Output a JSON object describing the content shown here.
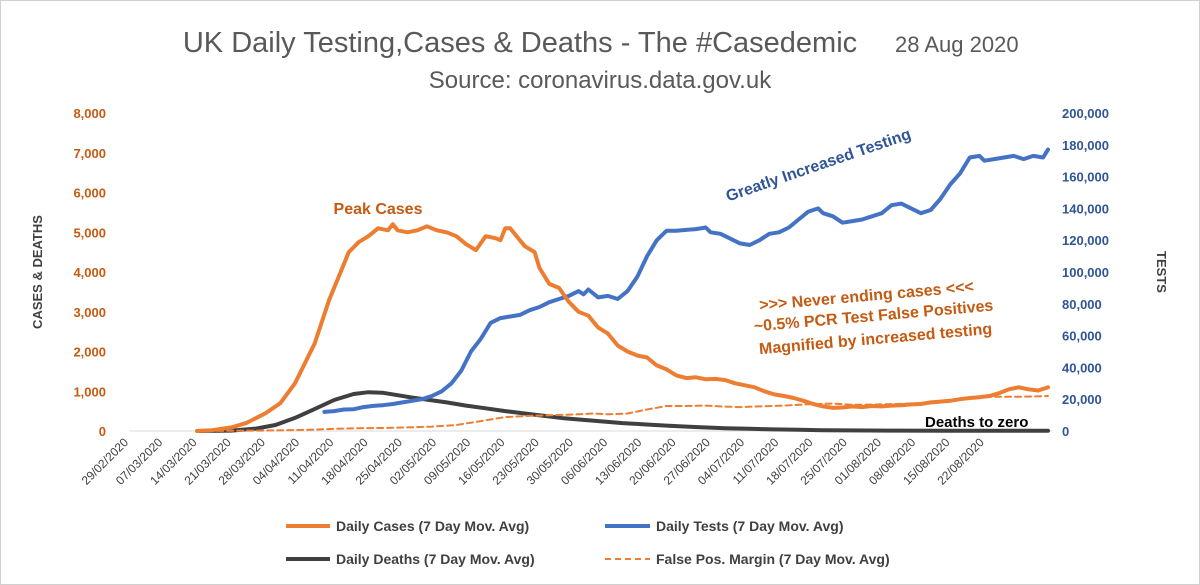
{
  "chart_data": {
    "type": "line",
    "title": "UK Daily Testing,Cases & Deaths - The #Casedemic",
    "date": "28 Aug 2020",
    "subtitle": "Source: coronavirus.data.gov.uk",
    "ylabel_left": "CASES & DEATHS",
    "ylabel_right": "TESTS",
    "ylim_left": [
      0,
      8000
    ],
    "ylim_right": [
      0,
      200000
    ],
    "left_ticks": [
      "0",
      "1,000",
      "2,000",
      "3,000",
      "4,000",
      "5,000",
      "6,000",
      "7,000",
      "8,000"
    ],
    "right_ticks": [
      "0",
      "20,000",
      "40,000",
      "60,000",
      "80,000",
      "100,000",
      "120,000",
      "140,000",
      "160,000",
      "180,000",
      "200,000"
    ],
    "x_ticks": [
      "29/02/2020",
      "07/03/2020",
      "14/03/2020",
      "21/03/2020",
      "28/03/2020",
      "04/04/2020",
      "11/04/2020",
      "18/04/2020",
      "25/04/2020",
      "02/05/2020",
      "09/05/2020",
      "16/05/2020",
      "23/05/2020",
      "30/05/2020",
      "06/06/2020",
      "13/06/2020",
      "20/06/2020",
      "27/06/2020",
      "04/07/2020",
      "11/07/2020",
      "18/07/2020",
      "25/07/2020",
      "01/08/2020",
      "08/08/2020",
      "15/08/2020",
      "22/08/2020"
    ],
    "x_range_days": [
      0,
      181
    ],
    "series": [
      {
        "name": "Daily Cases (7 Day Mov. Avg)",
        "axis": "left",
        "color": "#ED7D31",
        "style": "solid",
        "points": [
          [
            7,
            0
          ],
          [
            10,
            20
          ],
          [
            14,
            90
          ],
          [
            17,
            200
          ],
          [
            21,
            450
          ],
          [
            24,
            700
          ],
          [
            27,
            1200
          ],
          [
            31,
            2200
          ],
          [
            34,
            3300
          ],
          [
            36,
            3900
          ],
          [
            38,
            4500
          ],
          [
            40,
            4750
          ],
          [
            42,
            4900
          ],
          [
            44,
            5100
          ],
          [
            46,
            5050
          ],
          [
            47,
            5200
          ],
          [
            48,
            5050
          ],
          [
            50,
            5000
          ],
          [
            52,
            5050
          ],
          [
            54,
            5150
          ],
          [
            56,
            5050
          ],
          [
            58,
            5000
          ],
          [
            60,
            4900
          ],
          [
            62,
            4700
          ],
          [
            64,
            4550
          ],
          [
            66,
            4900
          ],
          [
            68,
            4850
          ],
          [
            69,
            4800
          ],
          [
            70,
            5100
          ],
          [
            71,
            5100
          ],
          [
            72,
            4950
          ],
          [
            74,
            4650
          ],
          [
            76,
            4500
          ],
          [
            77,
            4100
          ],
          [
            79,
            3700
          ],
          [
            81,
            3600
          ],
          [
            83,
            3250
          ],
          [
            85,
            3000
          ],
          [
            87,
            2900
          ],
          [
            89,
            2600
          ],
          [
            91,
            2450
          ],
          [
            93,
            2150
          ],
          [
            95,
            2000
          ],
          [
            97,
            1900
          ],
          [
            99,
            1850
          ],
          [
            101,
            1650
          ],
          [
            103,
            1550
          ],
          [
            105,
            1400
          ],
          [
            107,
            1330
          ],
          [
            109,
            1350
          ],
          [
            111,
            1300
          ],
          [
            113,
            1310
          ],
          [
            115,
            1280
          ],
          [
            117,
            1200
          ],
          [
            119,
            1150
          ],
          [
            121,
            1100
          ],
          [
            123,
            1000
          ],
          [
            125,
            920
          ],
          [
            127,
            880
          ],
          [
            129,
            830
          ],
          [
            131,
            760
          ],
          [
            133,
            680
          ],
          [
            135,
            620
          ],
          [
            137,
            580
          ],
          [
            139,
            590
          ],
          [
            141,
            620
          ],
          [
            143,
            600
          ],
          [
            145,
            630
          ],
          [
            147,
            620
          ],
          [
            149,
            640
          ],
          [
            151,
            650
          ],
          [
            153,
            670
          ],
          [
            155,
            680
          ],
          [
            157,
            720
          ],
          [
            159,
            740
          ],
          [
            161,
            760
          ],
          [
            163,
            800
          ],
          [
            165,
            830
          ],
          [
            167,
            850
          ],
          [
            169,
            880
          ],
          [
            171,
            950
          ],
          [
            173,
            1050
          ],
          [
            175,
            1100
          ],
          [
            177,
            1050
          ],
          [
            179,
            1020
          ],
          [
            181,
            1100
          ]
        ]
      },
      {
        "name": "Daily Tests (7 Day Mov. Avg)",
        "axis": "right",
        "color": "#4472C4",
        "style": "solid",
        "points": [
          [
            33,
            12000
          ],
          [
            35,
            12500
          ],
          [
            37,
            13500
          ],
          [
            39,
            13700
          ],
          [
            41,
            15000
          ],
          [
            43,
            15800
          ],
          [
            45,
            16200
          ],
          [
            47,
            17000
          ],
          [
            49,
            18000
          ],
          [
            51,
            19000
          ],
          [
            53,
            20000
          ],
          [
            55,
            22000
          ],
          [
            57,
            25000
          ],
          [
            59,
            30000
          ],
          [
            61,
            38000
          ],
          [
            63,
            50000
          ],
          [
            65,
            58000
          ],
          [
            67,
            68000
          ],
          [
            69,
            71000
          ],
          [
            71,
            72000
          ],
          [
            73,
            73000
          ],
          [
            75,
            76000
          ],
          [
            77,
            78000
          ],
          [
            79,
            81000
          ],
          [
            81,
            83000
          ],
          [
            83,
            85000
          ],
          [
            85,
            88000
          ],
          [
            86,
            86000
          ],
          [
            87,
            89000
          ],
          [
            89,
            84000
          ],
          [
            91,
            85000
          ],
          [
            93,
            83000
          ],
          [
            95,
            88000
          ],
          [
            97,
            97000
          ],
          [
            99,
            110000
          ],
          [
            101,
            120000
          ],
          [
            103,
            126000
          ],
          [
            105,
            126000
          ],
          [
            107,
            126500
          ],
          [
            109,
            127000
          ],
          [
            111,
            128000
          ],
          [
            112,
            125000
          ],
          [
            114,
            124000
          ],
          [
            116,
            121000
          ],
          [
            118,
            118000
          ],
          [
            120,
            117000
          ],
          [
            122,
            120000
          ],
          [
            124,
            124000
          ],
          [
            126,
            125000
          ],
          [
            128,
            128000
          ],
          [
            130,
            133000
          ],
          [
            132,
            138000
          ],
          [
            134,
            140000
          ],
          [
            135,
            137000
          ],
          [
            137,
            135000
          ],
          [
            139,
            131000
          ],
          [
            141,
            132000
          ],
          [
            143,
            133000
          ],
          [
            145,
            135000
          ],
          [
            147,
            137000
          ],
          [
            149,
            142000
          ],
          [
            151,
            143000
          ],
          [
            153,
            140000
          ],
          [
            155,
            137000
          ],
          [
            157,
            139000
          ],
          [
            159,
            146000
          ],
          [
            161,
            155000
          ],
          [
            163,
            162000
          ],
          [
            165,
            172000
          ],
          [
            167,
            173000
          ],
          [
            168,
            170000
          ],
          [
            170,
            171000
          ],
          [
            172,
            172000
          ],
          [
            174,
            173000
          ],
          [
            176,
            171000
          ],
          [
            178,
            173000
          ],
          [
            180,
            172000
          ],
          [
            181,
            177000
          ]
        ]
      },
      {
        "name": "Daily Deaths (7 Day Mov. Avg)",
        "axis": "left",
        "color": "#404040",
        "style": "solid",
        "points": [
          [
            7,
            0
          ],
          [
            14,
            10
          ],
          [
            19,
            60
          ],
          [
            23,
            150
          ],
          [
            27,
            330
          ],
          [
            31,
            550
          ],
          [
            35,
            780
          ],
          [
            39,
            930
          ],
          [
            42,
            975
          ],
          [
            45,
            960
          ],
          [
            48,
            900
          ],
          [
            51,
            840
          ],
          [
            54,
            790
          ],
          [
            58,
            720
          ],
          [
            62,
            640
          ],
          [
            66,
            570
          ],
          [
            70,
            500
          ],
          [
            74,
            440
          ],
          [
            78,
            380
          ],
          [
            82,
            320
          ],
          [
            86,
            280
          ],
          [
            90,
            240
          ],
          [
            94,
            200
          ],
          [
            98,
            170
          ],
          [
            102,
            140
          ],
          [
            106,
            115
          ],
          [
            110,
            95
          ],
          [
            115,
            70
          ],
          [
            120,
            55
          ],
          [
            125,
            40
          ],
          [
            130,
            30
          ],
          [
            135,
            20
          ],
          [
            140,
            15
          ],
          [
            150,
            10
          ],
          [
            160,
            8
          ],
          [
            170,
            5
          ],
          [
            181,
            5
          ]
        ]
      },
      {
        "name": "False Pos. Margin (7 Day Mov. Avg)",
        "axis": "left",
        "color": "#ED7D31",
        "style": "dashed",
        "points": [
          [
            7,
            0
          ],
          [
            20,
            10
          ],
          [
            30,
            30
          ],
          [
            35,
            55
          ],
          [
            40,
            70
          ],
          [
            45,
            75
          ],
          [
            50,
            90
          ],
          [
            55,
            110
          ],
          [
            60,
            150
          ],
          [
            65,
            250
          ],
          [
            70,
            350
          ],
          [
            75,
            380
          ],
          [
            80,
            400
          ],
          [
            85,
            420
          ],
          [
            88,
            440
          ],
          [
            91,
            420
          ],
          [
            95,
            440
          ],
          [
            99,
            540
          ],
          [
            103,
            630
          ],
          [
            107,
            630
          ],
          [
            111,
            640
          ],
          [
            114,
            620
          ],
          [
            118,
            600
          ],
          [
            122,
            620
          ],
          [
            127,
            640
          ],
          [
            133,
            680
          ],
          [
            137,
            690
          ],
          [
            141,
            660
          ],
          [
            145,
            665
          ],
          [
            150,
            680
          ],
          [
            155,
            700
          ],
          [
            160,
            740
          ],
          [
            165,
            840
          ],
          [
            170,
            860
          ],
          [
            175,
            860
          ],
          [
            181,
            880
          ]
        ]
      }
    ],
    "annotations": [
      {
        "text": "Peak Cases",
        "color": "#C55A11"
      },
      {
        "text": "Greatly Increased Testing",
        "color": "#2F5597"
      },
      {
        "text": ">>> Never ending cases <<<",
        "color": "#C55A11"
      },
      {
        "text": "~0.5% PCR Test False Positives",
        "color": "#C55A11"
      },
      {
        "text": "Magnified by increased testing",
        "color": "#C55A11"
      },
      {
        "text": "Deaths to zero",
        "color": "#000000"
      }
    ],
    "legend": [
      "Daily Cases (7 Day Mov. Avg)",
      "Daily Tests (7 Day Mov. Avg)",
      "Daily Deaths (7 Day Mov. Avg)",
      "False Pos. Margin (7 Day Mov. Avg)"
    ]
  }
}
